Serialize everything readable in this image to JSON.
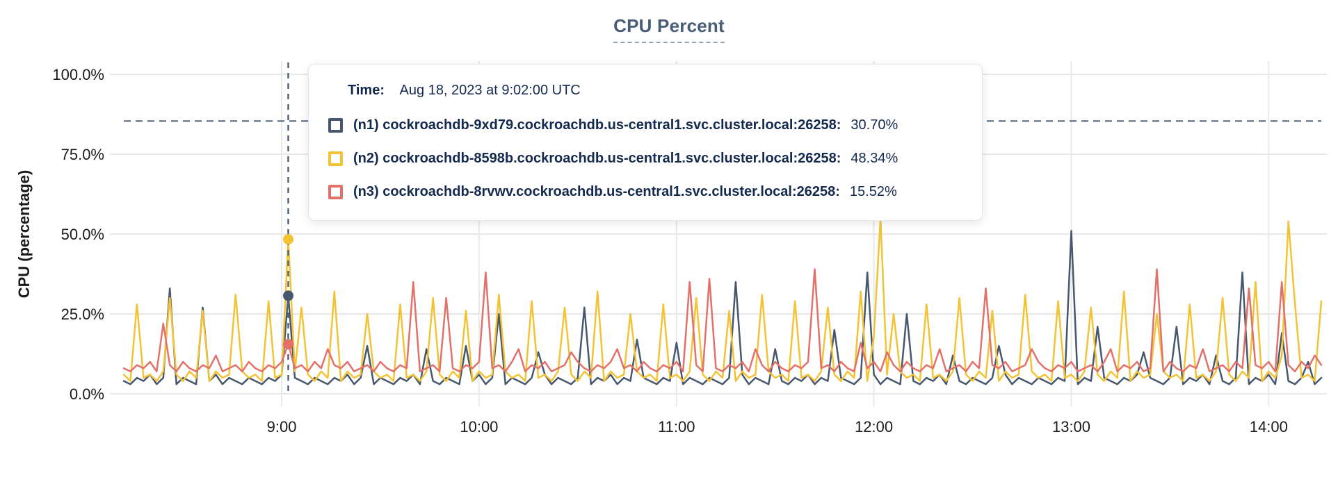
{
  "title": "CPU Percent",
  "colors": {
    "n1": "#47586e",
    "n2": "#f3c334",
    "n3": "#e2716a",
    "grid": "#e8e8e8",
    "crosshair": "#51657c",
    "threshold": "#51657c",
    "axis_text": "#1a1a1a",
    "tooltip_text": "#14294e",
    "title_text": "#4a5d78"
  },
  "tooltip": {
    "time_label": "Time:",
    "time_value": "Aug 18, 2023 at 9:02:00 UTC",
    "rows": [
      {
        "label": "(n1) cockroachdb-9xd79.cockroachdb.us-central1.svc.cluster.local:26258:",
        "value": "30.70%",
        "color": "#47586e"
      },
      {
        "label": "(n2) cockroachdb-8598b.cockroachdb.us-central1.svc.cluster.local:26258:",
        "value": "48.34%",
        "color": "#f3c334"
      },
      {
        "label": "(n3) cockroachdb-8rvwv.cockroachdb.us-central1.svc.cluster.local:26258:",
        "value": "15.52%",
        "color": "#e2716a"
      }
    ]
  },
  "chart_data": {
    "type": "line",
    "title": "CPU Percent",
    "xlabel": "",
    "ylabel": "CPU (percentage)",
    "ylim": [
      0,
      100
    ],
    "grid": true,
    "legend_position": "tooltip",
    "y_ticks": [
      "0.0%",
      "25.0%",
      "50.0%",
      "75.0%",
      "100.0%"
    ],
    "y_tick_values": [
      0,
      25,
      50,
      75,
      100
    ],
    "x_ticks": [
      "9:00",
      "10:00",
      "11:00",
      "12:00",
      "13:00",
      "14:00"
    ],
    "x_tick_minutes": [
      540,
      600,
      660,
      720,
      780,
      840
    ],
    "x_start_min": 492,
    "x_end_min": 856,
    "step_min": 2,
    "threshold_percent": 85.4,
    "crosshair": {
      "time": "9:02:00",
      "x_min": 542,
      "points": [
        {
          "series": "n1",
          "value": 30.7
        },
        {
          "series": "n2",
          "value": 48.34
        },
        {
          "series": "n3",
          "value": 15.52
        }
      ]
    },
    "series": [
      {
        "name": "(n1) cockroachdb-9xd79.cockroachdb.us-central1.svc.cluster.local:26258",
        "color": "#47586e",
        "values": [
          4,
          3,
          5,
          4,
          6,
          3,
          5,
          33,
          3,
          5,
          4,
          3,
          27,
          4,
          6,
          3,
          5,
          4,
          3,
          5,
          4,
          3,
          5,
          4,
          6,
          30.7,
          5,
          4,
          3,
          5,
          4,
          3,
          5,
          4,
          6,
          3,
          5,
          15,
          3,
          5,
          4,
          3,
          5,
          4,
          6,
          3,
          14,
          4,
          3,
          5,
          4,
          3,
          15,
          4,
          6,
          3,
          5,
          25,
          3,
          5,
          4,
          3,
          5,
          13,
          6,
          3,
          5,
          4,
          3,
          5,
          27,
          3,
          5,
          4,
          6,
          3,
          5,
          4,
          17,
          5,
          4,
          3,
          5,
          4,
          16,
          3,
          5,
          4,
          3,
          5,
          4,
          3,
          5,
          35,
          6,
          3,
          5,
          4,
          3,
          14,
          4,
          3,
          5,
          4,
          6,
          3,
          5,
          4,
          20,
          5,
          4,
          3,
          5,
          38,
          6,
          3,
          5,
          4,
          3,
          25,
          4,
          3,
          5,
          4,
          6,
          3,
          12,
          4,
          3,
          5,
          4,
          3,
          5,
          15,
          6,
          3,
          5,
          4,
          3,
          5,
          4,
          3,
          5,
          4,
          51,
          3,
          5,
          4,
          21,
          5,
          4,
          3,
          5,
          4,
          6,
          13,
          5,
          4,
          3,
          5,
          21,
          3,
          5,
          4,
          6,
          3,
          12,
          4,
          3,
          5,
          38,
          3,
          5,
          4,
          6,
          3,
          19,
          4,
          3,
          5,
          10,
          3,
          5
        ]
      },
      {
        "name": "(n2) cockroachdb-8598b.cockroachdb.us-central1.svc.cluster.local:26258",
        "color": "#f3c334",
        "values": [
          6,
          4,
          28,
          5,
          6,
          4,
          7,
          30,
          6,
          4,
          7,
          5,
          26,
          4,
          7,
          5,
          6,
          31,
          7,
          5,
          6,
          4,
          29,
          5,
          6,
          48.34,
          7,
          27,
          6,
          4,
          7,
          5,
          32,
          4,
          7,
          5,
          6,
          25,
          7,
          5,
          6,
          4,
          28,
          5,
          6,
          4,
          7,
          30,
          6,
          4,
          7,
          5,
          26,
          4,
          7,
          5,
          6,
          31,
          7,
          5,
          6,
          4,
          29,
          5,
          6,
          4,
          7,
          27,
          6,
          4,
          7,
          5,
          32,
          4,
          7,
          5,
          6,
          25,
          7,
          5,
          6,
          4,
          28,
          5,
          6,
          4,
          7,
          30,
          6,
          4,
          7,
          5,
          26,
          4,
          7,
          5,
          6,
          31,
          7,
          5,
          6,
          4,
          29,
          5,
          6,
          4,
          7,
          27,
          6,
          4,
          7,
          5,
          32,
          4,
          18,
          55,
          6,
          25,
          7,
          5,
          6,
          4,
          28,
          5,
          6,
          4,
          7,
          30,
          6,
          4,
          7,
          5,
          26,
          4,
          7,
          5,
          6,
          31,
          7,
          5,
          6,
          4,
          29,
          5,
          6,
          4,
          7,
          27,
          6,
          4,
          7,
          5,
          32,
          4,
          7,
          5,
          6,
          25,
          7,
          5,
          6,
          4,
          28,
          5,
          6,
          4,
          7,
          30,
          6,
          4,
          7,
          5,
          35,
          4,
          7,
          5,
          12,
          54,
          28,
          5,
          6,
          4,
          29
        ]
      },
      {
        "name": "(n3) cockroachdb-8rvwv.cockroachdb.us-central1.svc.cluster.local:26258",
        "color": "#e2716a",
        "values": [
          8,
          7,
          9,
          8,
          10,
          7,
          22,
          9,
          7,
          10,
          8,
          7,
          9,
          8,
          12,
          7,
          8,
          9,
          7,
          10,
          8,
          7,
          9,
          8,
          10,
          15.52,
          8,
          9,
          7,
          10,
          8,
          14,
          9,
          8,
          10,
          7,
          8,
          9,
          7,
          10,
          8,
          7,
          9,
          8,
          35,
          7,
          8,
          9,
          7,
          30,
          8,
          7,
          9,
          8,
          10,
          38,
          8,
          9,
          7,
          10,
          14,
          7,
          9,
          8,
          10,
          7,
          8,
          9,
          13,
          10,
          8,
          7,
          9,
          8,
          10,
          14,
          8,
          9,
          7,
          10,
          8,
          7,
          9,
          8,
          10,
          7,
          35,
          9,
          7,
          36,
          8,
          7,
          9,
          8,
          10,
          7,
          14,
          9,
          7,
          10,
          8,
          7,
          9,
          8,
          10,
          39,
          8,
          9,
          7,
          10,
          8,
          7,
          16,
          8,
          10,
          7,
          13,
          9,
          7,
          10,
          8,
          7,
          9,
          8,
          14,
          7,
          8,
          9,
          7,
          10,
          8,
          33,
          9,
          8,
          10,
          7,
          8,
          9,
          14,
          10,
          8,
          7,
          9,
          8,
          10,
          7,
          8,
          9,
          7,
          10,
          14,
          7,
          9,
          8,
          10,
          7,
          8,
          39,
          7,
          10,
          8,
          7,
          9,
          8,
          14,
          7,
          8,
          9,
          7,
          10,
          8,
          33,
          9,
          8,
          10,
          7,
          35,
          9,
          7,
          10,
          8,
          12,
          9
        ]
      }
    ]
  }
}
